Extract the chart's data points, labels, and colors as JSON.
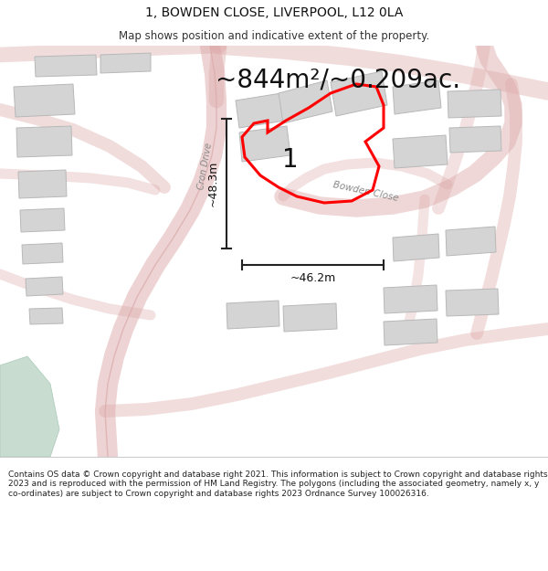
{
  "title_line1": "1, BOWDEN CLOSE, LIVERPOOL, L12 0LA",
  "title_line2": "Map shows position and indicative extent of the property.",
  "area_text": "~844m²/~0.209ac.",
  "width_label": "~46.2m",
  "height_label": "~48.3m",
  "plot_number": "1",
  "road_label1": "Cron Drive",
  "road_label2": "Bowden Close",
  "footer_text": "Contains OS data © Crown copyright and database right 2021. This information is subject to Crown copyright and database rights 2023 and is reproduced with the permission of HM Land Registry. The polygons (including the associated geometry, namely x, y co-ordinates) are subject to Crown copyright and database rights 2023 Ordnance Survey 100026316.",
  "map_bg": "#f2f0ec",
  "road_color": "#e8b0b0",
  "building_color": "#d4d4d4",
  "building_edge": "#b8b8b8",
  "highlight_color": "#ff0000",
  "green_area": "#c8ddd0",
  "title_fontsize": 10,
  "subtitle_fontsize": 8.5,
  "area_fontsize": 20,
  "footer_fontsize": 6.5
}
